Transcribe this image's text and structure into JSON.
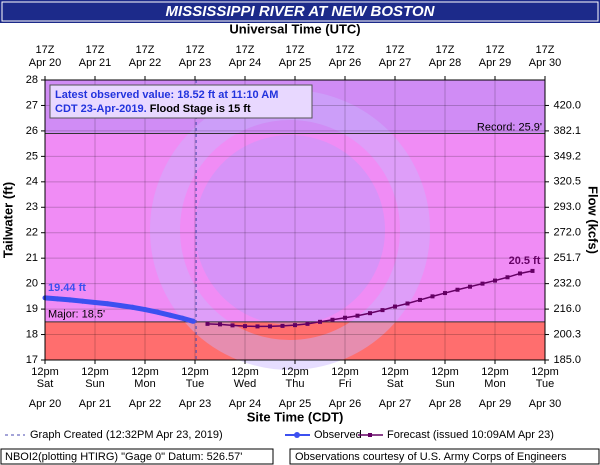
{
  "chart_data": {
    "type": "line",
    "title": "MISSISSIPPI RIVER AT NEW BOSTON",
    "top_axis_label": "Universal Time (UTC)",
    "top_ticks": [
      {
        "time": "17Z",
        "date": "Apr 20"
      },
      {
        "time": "17Z",
        "date": "Apr 21"
      },
      {
        "time": "17Z",
        "date": "Apr 22"
      },
      {
        "time": "17Z",
        "date": "Apr 23"
      },
      {
        "time": "17Z",
        "date": "Apr 24"
      },
      {
        "time": "17Z",
        "date": "Apr 25"
      },
      {
        "time": "17Z",
        "date": "Apr 26"
      },
      {
        "time": "17Z",
        "date": "Apr 27"
      },
      {
        "time": "17Z",
        "date": "Apr 28"
      },
      {
        "time": "17Z",
        "date": "Apr 29"
      },
      {
        "time": "17Z",
        "date": "Apr 30"
      }
    ],
    "x_axis_label": "Site Time (CDT)",
    "xlim": [
      "2019-04-20T12:00",
      "2019-04-30T12:00"
    ],
    "xticks": [
      {
        "value": "2019-04-20T12:00",
        "time": "12pm",
        "weekday": "Sat",
        "date": "Apr 20"
      },
      {
        "value": "2019-04-21T12:00",
        "time": "12pm",
        "weekday": "Sun",
        "date": "Apr 21"
      },
      {
        "value": "2019-04-22T12:00",
        "time": "12pm",
        "weekday": "Mon",
        "date": "Apr 22"
      },
      {
        "value": "2019-04-23T12:00",
        "time": "12pm",
        "weekday": "Tue",
        "date": "Apr 23"
      },
      {
        "value": "2019-04-24T12:00",
        "time": "12pm",
        "weekday": "Wed",
        "date": "Apr 24"
      },
      {
        "value": "2019-04-25T12:00",
        "time": "12pm",
        "weekday": "Thu",
        "date": "Apr 25"
      },
      {
        "value": "2019-04-26T12:00",
        "time": "12pm",
        "weekday": "Fri",
        "date": "Apr 26"
      },
      {
        "value": "2019-04-27T12:00",
        "time": "12pm",
        "weekday": "Sat",
        "date": "Apr 27"
      },
      {
        "value": "2019-04-28T12:00",
        "time": "12pm",
        "weekday": "Sun",
        "date": "Apr 28"
      },
      {
        "value": "2019-04-29T12:00",
        "time": "12pm",
        "weekday": "Mon",
        "date": "Apr 29"
      },
      {
        "value": "2019-04-30T12:00",
        "time": "12pm",
        "weekday": "Tue",
        "date": "Apr 30"
      }
    ],
    "y_axis_label": "Tailwater (ft)",
    "ylim": [
      17,
      28
    ],
    "yticks": [
      17,
      18,
      19,
      20,
      21,
      22,
      23,
      24,
      25,
      26,
      27,
      28
    ],
    "y2_axis_label": "Flow (kcfs)",
    "y2ticks": [
      {
        "value": 185,
        "label": "185.0"
      },
      {
        "value": 200.3,
        "label": "200.3"
      },
      {
        "value": 216,
        "label": "216.0"
      },
      {
        "value": 232,
        "label": "232.0"
      },
      {
        "value": 251.7,
        "label": "251.7"
      },
      {
        "value": 272,
        "label": "272.0"
      },
      {
        "value": 293,
        "label": "293.0"
      },
      {
        "value": 320.5,
        "label": "320.5"
      },
      {
        "value": 349.2,
        "label": "349.2"
      },
      {
        "value": 382.1,
        "label": "382.1"
      },
      {
        "value": 420,
        "label": "420.0"
      }
    ],
    "grid": true,
    "thresholds": [
      {
        "label": "Record: 25.9'",
        "value": 25.9
      },
      {
        "label": "Major: 18.5'",
        "value": 18.5
      }
    ],
    "band_colors": {
      "below_major": "#ff6e6e",
      "major": "#f08cf5",
      "above_record": "#d08cf5"
    },
    "info_box": {
      "line1": "Latest observed value: 18.52 ft at 11:10 AM",
      "line2a": "CDT 23-Apr-2019.",
      "line2b": " Flood Stage is 15 ft"
    },
    "graph_created": {
      "label": "Graph Created (12:32PM Apr 23, 2019)",
      "x": "2019-04-23T12:32"
    },
    "series": [
      {
        "name": "Observed",
        "color": "#3c50f0",
        "label": "19.44 ft",
        "x": [
          "2019-04-20T12:00",
          "2019-04-20T18:00",
          "2019-04-21T00:00",
          "2019-04-21T06:00",
          "2019-04-21T12:00",
          "2019-04-21T18:00",
          "2019-04-22T00:00",
          "2019-04-22T06:00",
          "2019-04-22T12:00",
          "2019-04-22T18:00",
          "2019-04-23T00:00",
          "2019-04-23T06:00",
          "2019-04-23T11:10"
        ],
        "values": [
          19.44,
          19.4,
          19.36,
          19.31,
          19.26,
          19.21,
          19.14,
          19.07,
          18.98,
          18.88,
          18.76,
          18.64,
          18.52
        ]
      },
      {
        "name": "Forecast (issued 10:09AM Apr 23)",
        "color": "#640064",
        "label": "20.5 ft",
        "x": [
          "2019-04-23T18:00",
          "2019-04-24T00:00",
          "2019-04-24T06:00",
          "2019-04-24T12:00",
          "2019-04-24T18:00",
          "2019-04-25T00:00",
          "2019-04-25T06:00",
          "2019-04-25T12:00",
          "2019-04-25T18:00",
          "2019-04-26T00:00",
          "2019-04-26T06:00",
          "2019-04-26T12:00",
          "2019-04-26T18:00",
          "2019-04-27T00:00",
          "2019-04-27T06:00",
          "2019-04-27T12:00",
          "2019-04-27T18:00",
          "2019-04-28T00:00",
          "2019-04-28T06:00",
          "2019-04-28T12:00",
          "2019-04-28T18:00",
          "2019-04-29T00:00",
          "2019-04-29T06:00",
          "2019-04-29T12:00",
          "2019-04-29T18:00",
          "2019-04-30T00:00",
          "2019-04-30T06:00"
        ],
        "values": [
          18.42,
          18.4,
          18.36,
          18.33,
          18.32,
          18.32,
          18.34,
          18.37,
          18.42,
          18.5,
          18.58,
          18.66,
          18.74,
          18.84,
          18.96,
          19.1,
          19.22,
          19.36,
          19.5,
          19.63,
          19.76,
          19.88,
          20.0,
          20.12,
          20.25,
          20.4,
          20.5
        ]
      }
    ],
    "footer_left": "NBOI2(plotting HTIRG) \"Gage 0\" Datum: 526.57'",
    "footer_right": "Observations courtesy of U.S. Army Corps of Engineers"
  }
}
